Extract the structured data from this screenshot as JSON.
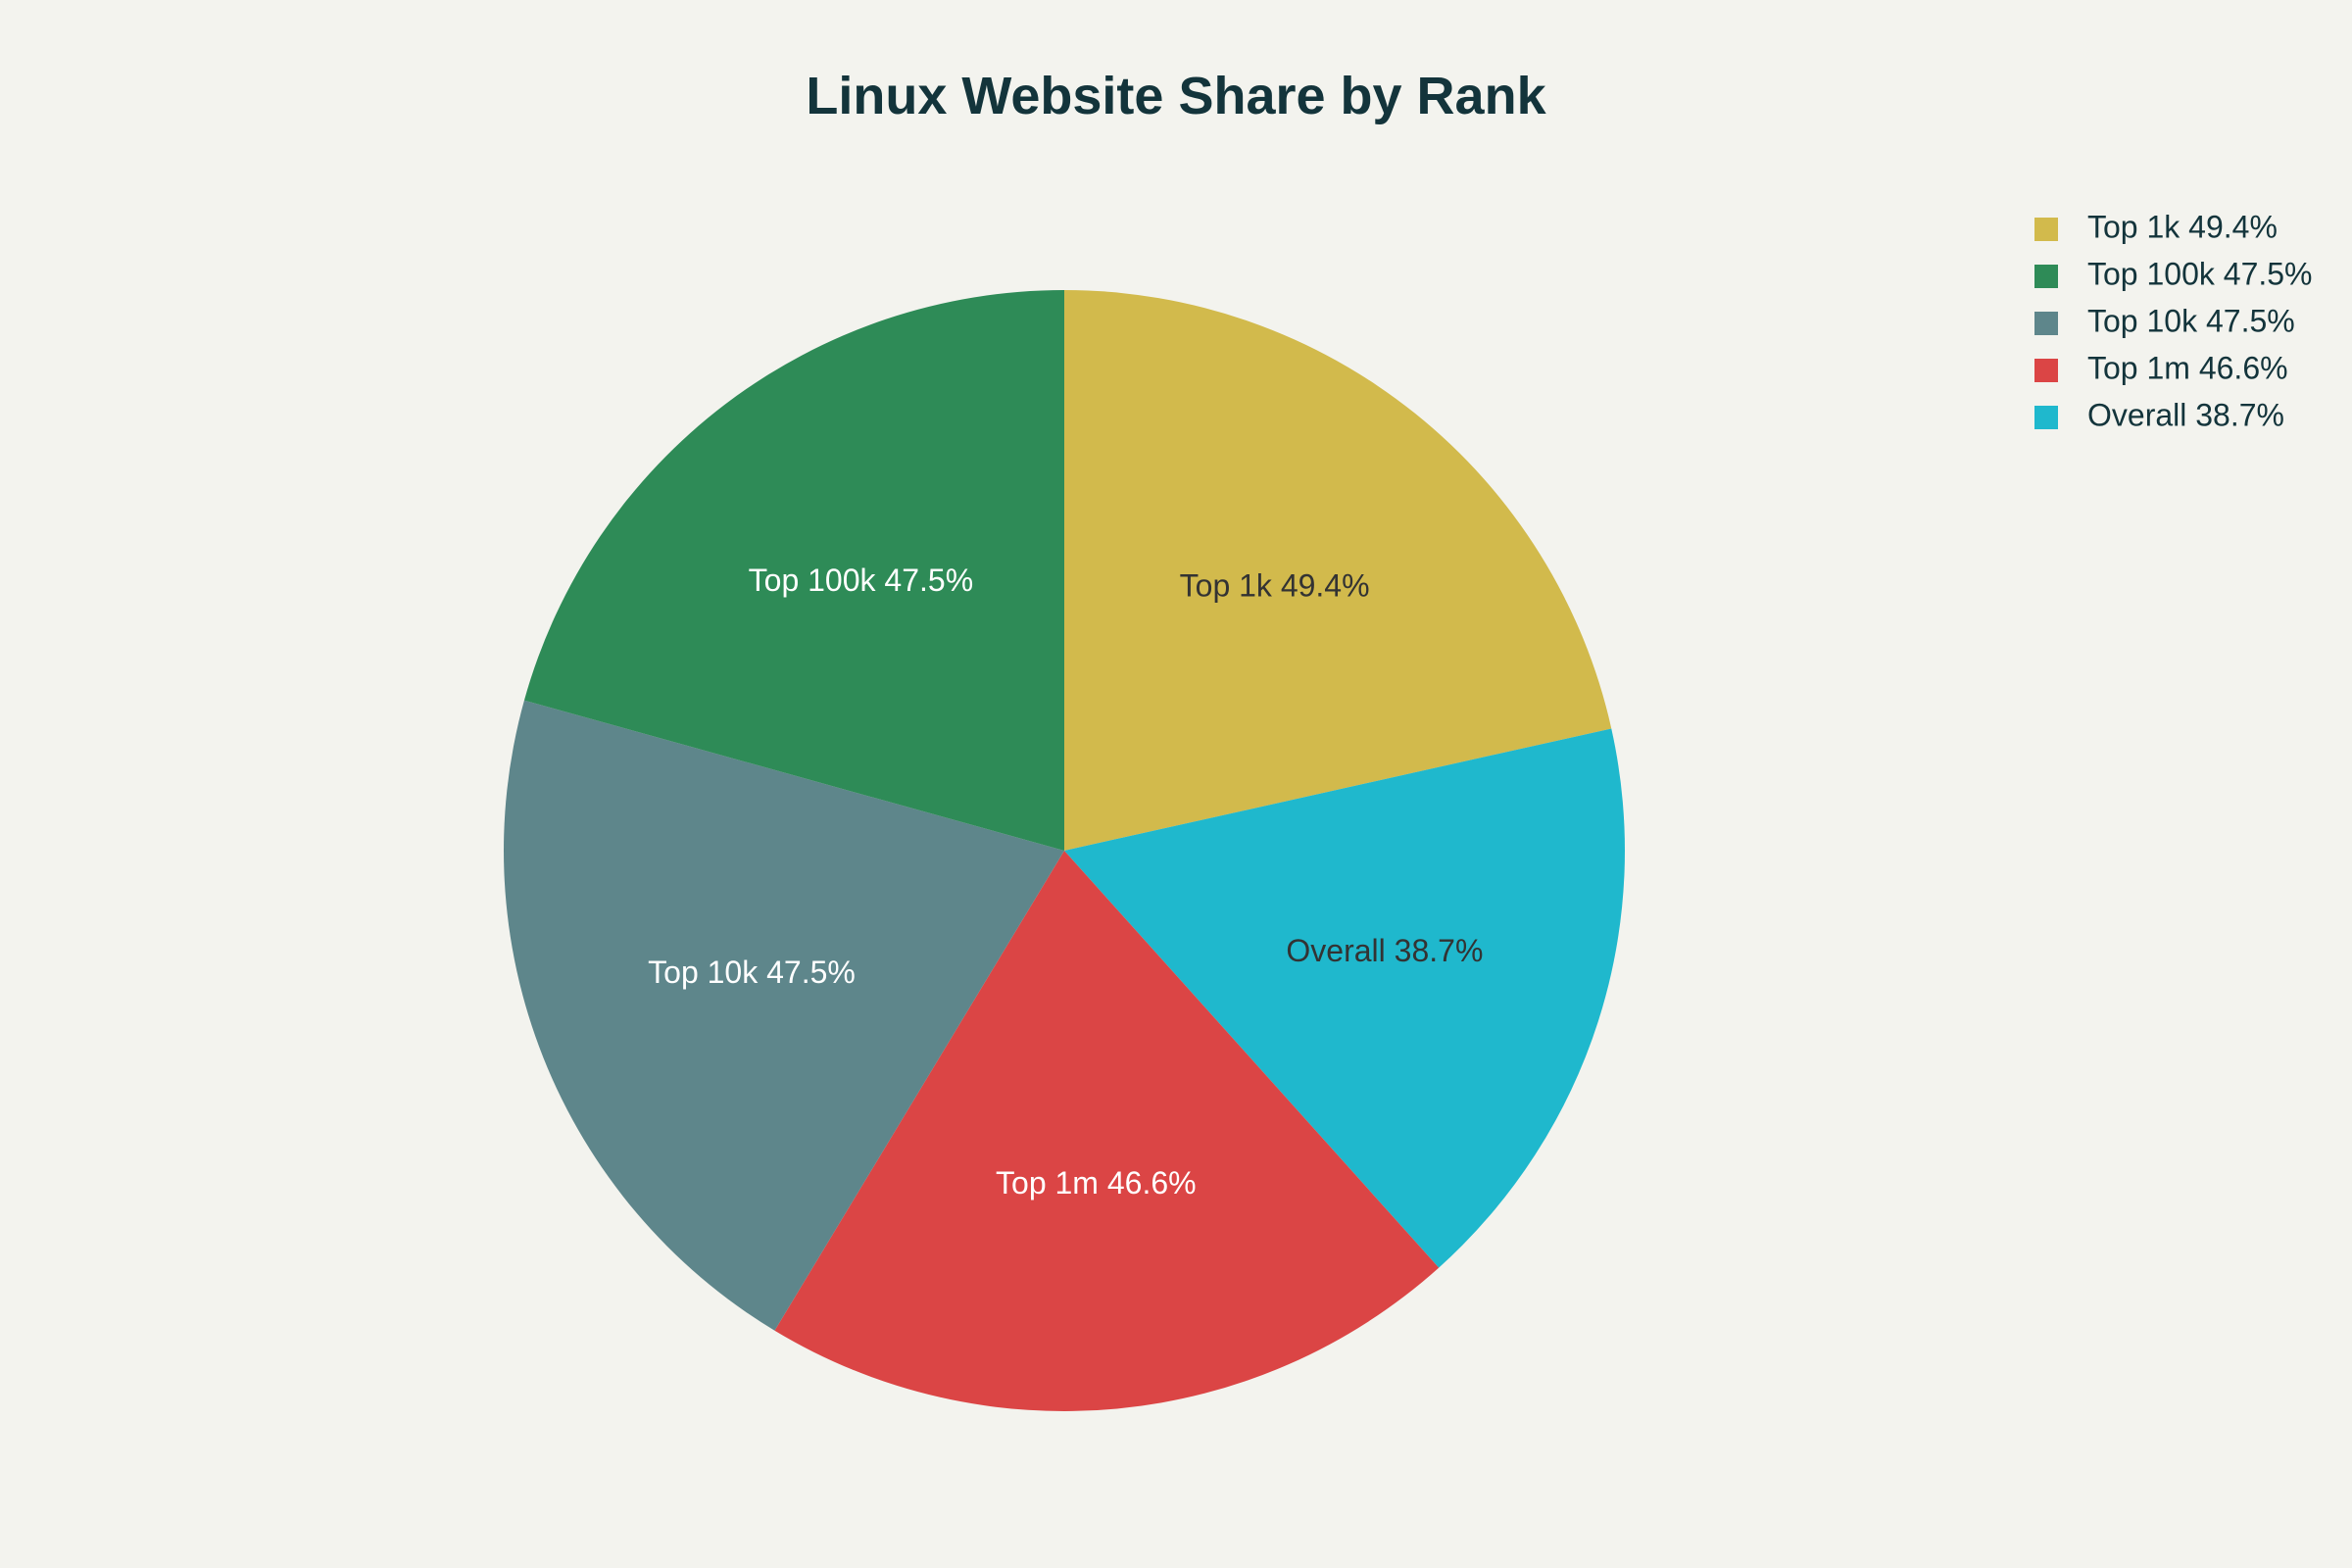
{
  "chart_data": {
    "type": "pie",
    "title": "Linux Website Share by Rank",
    "labels": [
      "Top 1k 49.4%",
      "Top 100k 47.5%",
      "Top 10k 47.5%",
      "Top 1m 46.6%",
      "Overall 38.7%"
    ],
    "values": [
      49.4,
      47.5,
      47.5,
      46.6,
      38.7
    ],
    "colors": [
      "#d2ba4c",
      "#2e8b57",
      "#5e868b",
      "#db4545",
      "#1fb8cd"
    ],
    "label_colors": [
      "#333333",
      "#ffffff",
      "#ffffff",
      "#ffffff",
      "#333333"
    ],
    "legend": {
      "placement": "top-right",
      "order": [
        "Top 1k 49.4%",
        "Top 100k 47.5%",
        "Top 10k 47.5%",
        "Top 1m 46.6%",
        "Overall 38.7%"
      ]
    },
    "start_angle": "12 o'clock",
    "direction": "counterclockwise"
  }
}
